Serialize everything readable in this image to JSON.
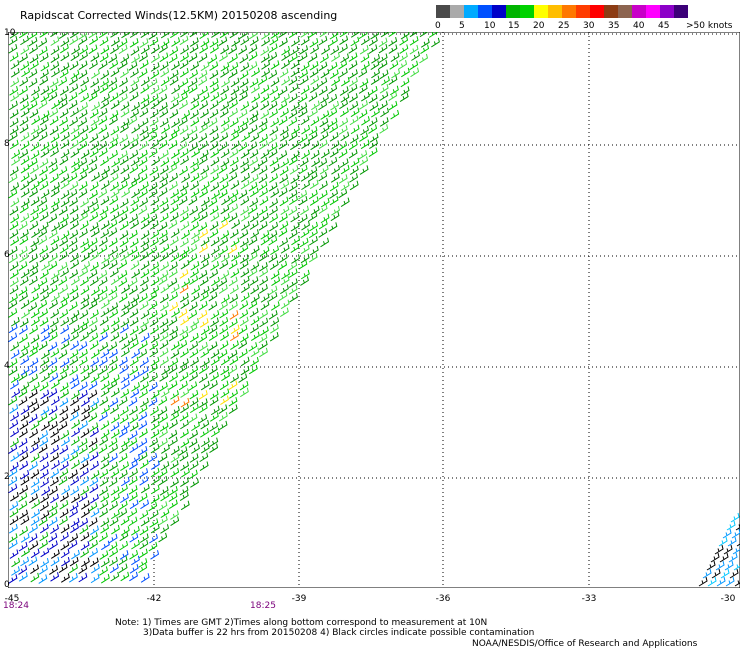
{
  "title": "Rapidscat Corrected Winds(12.5KM) 20150208 ascending",
  "colorbar": {
    "swatches": [
      "#4a4a4a",
      "#aaaaaa",
      "#00aaff",
      "#0050ff",
      "#0000c8",
      "#00b400",
      "#00d200",
      "#ffff00",
      "#ffbe00",
      "#ff7800",
      "#ff3c00",
      "#ff0000",
      "#8c3c14",
      "#8c6450",
      "#c800c8",
      "#ff00ff",
      "#8c00c8",
      "#3c0078"
    ],
    "labels": [
      "0",
      "5",
      "10",
      "15",
      "20",
      "25",
      "30",
      "35",
      "40",
      "45",
      ">50 knots"
    ]
  },
  "axes": {
    "x_ticks": [
      "-45",
      "-42",
      "-39",
      "-36",
      "-33",
      "-30"
    ],
    "y_ticks": [
      "10",
      "8",
      "6",
      "4",
      "2",
      "0"
    ]
  },
  "times": [
    "18:24",
    "18:25"
  ],
  "notes": {
    "line1": "Note: 1) Times are GMT 2)Times along bottom correspond to measurement at 10N",
    "line2": "3)Data buffer is 22 hrs from 20150208 4) Black circles indicate possible contamination",
    "line3": "NOAA/NESDIS/Office of Research and Applications"
  }
}
